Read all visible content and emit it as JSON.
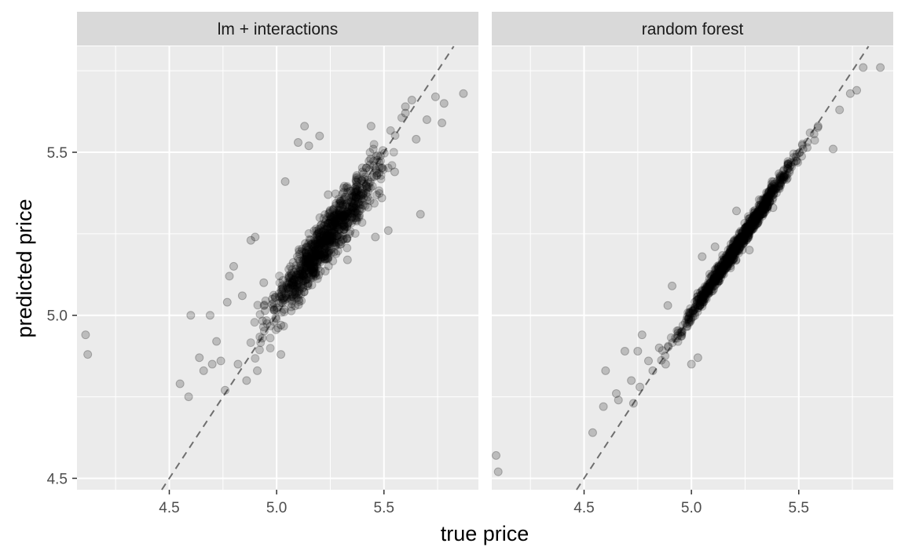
{
  "chart_data": {
    "type": "scatter",
    "xlabel": "true price",
    "ylabel": "predicted price",
    "xlim": [
      4.07,
      5.94
    ],
    "ylim": [
      4.465,
      5.825
    ],
    "x_ticks": [
      4.5,
      5.0,
      5.5
    ],
    "x_tick_labels": [
      "4.5",
      "5.0",
      "5.5"
    ],
    "y_ticks": [
      4.5,
      5.0,
      5.5
    ],
    "y_tick_labels": [
      "4.5",
      "5.0",
      "5.5"
    ],
    "grid": true,
    "reference_line": "y = x (dashed)",
    "point_color": "#000000",
    "point_alpha": 0.2,
    "panels": [
      {
        "label": "lm + interactions",
        "points": [
          [
            4.11,
            4.94
          ],
          [
            4.12,
            4.88
          ],
          [
            4.55,
            4.79
          ],
          [
            4.59,
            4.75
          ],
          [
            4.6,
            5.0
          ],
          [
            4.64,
            4.87
          ],
          [
            4.66,
            4.83
          ],
          [
            4.69,
            5.0
          ],
          [
            4.7,
            4.85
          ],
          [
            4.72,
            4.92
          ],
          [
            4.74,
            4.86
          ],
          [
            4.76,
            4.77
          ],
          [
            4.77,
            5.04
          ],
          [
            4.78,
            5.12
          ],
          [
            4.8,
            5.15
          ],
          [
            4.82,
            4.85
          ],
          [
            4.84,
            5.06
          ],
          [
            4.86,
            4.8
          ],
          [
            4.88,
            5.23
          ],
          [
            4.9,
            5.24
          ],
          [
            4.91,
            4.83
          ],
          [
            4.94,
            5.1
          ],
          [
            5.02,
            4.88
          ],
          [
            5.04,
            5.41
          ],
          [
            5.1,
            5.53
          ],
          [
            5.13,
            5.58
          ],
          [
            5.15,
            5.52
          ],
          [
            5.2,
            5.55
          ],
          [
            5.24,
            5.37
          ],
          [
            5.37,
            5.41
          ],
          [
            5.4,
            5.44
          ],
          [
            5.44,
            5.58
          ],
          [
            5.49,
            5.36
          ],
          [
            5.52,
            5.26
          ],
          [
            5.55,
            5.44
          ],
          [
            5.6,
            5.62
          ],
          [
            5.65,
            5.54
          ],
          [
            5.67,
            5.31
          ],
          [
            5.7,
            5.6
          ],
          [
            5.74,
            5.67
          ],
          [
            5.77,
            5.59
          ],
          [
            5.78,
            5.65
          ],
          [
            5.87,
            5.68
          ],
          [
            5.02,
            4.97
          ],
          [
            4.98,
            5.05
          ],
          [
            5.08,
            5.1
          ],
          [
            5.33,
            5.17
          ],
          [
            5.46,
            5.24
          ],
          [
            5.6,
            5.64
          ],
          [
            5.63,
            5.66
          ]
        ]
      },
      {
        "label": "random forest",
        "points": [
          [
            4.09,
            4.57
          ],
          [
            4.1,
            4.52
          ],
          [
            4.54,
            4.64
          ],
          [
            4.59,
            4.72
          ],
          [
            4.6,
            4.83
          ],
          [
            4.65,
            4.76
          ],
          [
            4.66,
            4.74
          ],
          [
            4.69,
            4.89
          ],
          [
            4.72,
            4.8
          ],
          [
            4.73,
            4.73
          ],
          [
            4.75,
            4.89
          ],
          [
            4.76,
            4.78
          ],
          [
            4.77,
            4.94
          ],
          [
            4.8,
            4.86
          ],
          [
            4.82,
            4.83
          ],
          [
            4.85,
            4.9
          ],
          [
            4.88,
            4.85
          ],
          [
            4.89,
            5.03
          ],
          [
            4.91,
            5.09
          ],
          [
            5.0,
            4.85
          ],
          [
            5.03,
            4.87
          ],
          [
            5.05,
            5.18
          ],
          [
            5.11,
            5.21
          ],
          [
            5.21,
            5.32
          ],
          [
            5.27,
            5.2
          ],
          [
            5.38,
            5.33
          ],
          [
            5.45,
            5.45
          ],
          [
            5.52,
            5.51
          ],
          [
            5.59,
            5.58
          ],
          [
            5.66,
            5.51
          ],
          [
            5.69,
            5.63
          ],
          [
            5.74,
            5.68
          ],
          [
            5.77,
            5.69
          ],
          [
            5.8,
            5.76
          ],
          [
            5.88,
            5.76
          ]
        ]
      }
    ]
  }
}
